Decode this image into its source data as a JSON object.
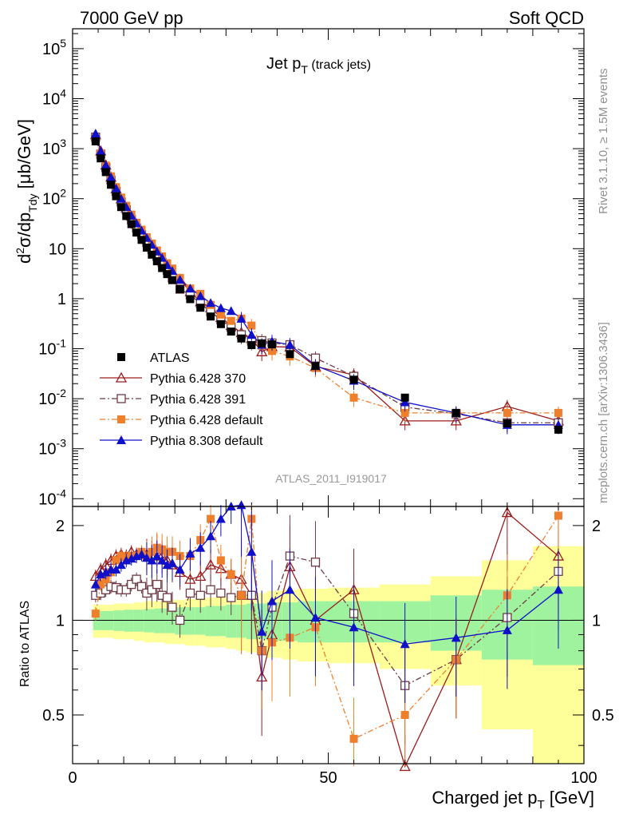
{
  "header": {
    "left": "7000 GeV pp",
    "right": "Soft QCD"
  },
  "side_text": {
    "rivet": "Rivet 3.1.10, ≥ 1.5M events",
    "mcplots": "mcplots.cern.ch [arXiv:1306.3436]"
  },
  "chart_data": {
    "type": "line",
    "title": "Jet p_T (track jets)",
    "analysis_label": "ATLAS_2011_I919017",
    "xlabel": "Charged jet p_T [GeV]",
    "ylabel_main": "d²σ/dp_Tdy [μb/GeV]",
    "ylabel_ratio": "Ratio to ATLAS",
    "xlim": [
      0,
      100
    ],
    "ylim_main": [
      7e-05,
      250000
    ],
    "ylim_ratio": [
      0.35,
      2.3
    ],
    "log_y_main": true,
    "log_y_ratio": true,
    "grid": false,
    "legend_position": "bottom-left",
    "x_ticks": [
      0,
      50,
      100
    ],
    "y_ticks_main": [
      "10^-4",
      "10^-3",
      "10^-2",
      "10^-1",
      "1",
      "10",
      "10^2",
      "10^3",
      "10^4",
      "10^5"
    ],
    "y_ticks_ratio": [
      "0.5",
      "1",
      "2"
    ],
    "x": [
      4.5,
      5.5,
      6.5,
      7.5,
      8.5,
      9.5,
      10.5,
      11.5,
      12.5,
      13.5,
      14.5,
      15.5,
      16.5,
      17.5,
      18.5,
      19.5,
      21,
      23,
      25,
      27,
      29,
      31,
      33,
      35,
      37,
      39,
      42.5,
      47.5,
      55,
      65,
      75,
      85,
      95
    ],
    "series": [
      {
        "name": "ATLAS",
        "color": "#000000",
        "marker": "filled-square",
        "values": [
          1400,
          640,
          340,
          190,
          112,
          68,
          45,
          31,
          21,
          15,
          10.5,
          7.6,
          5.6,
          4.1,
          3.1,
          2.35,
          1.55,
          0.98,
          0.66,
          0.44,
          0.31,
          0.22,
          0.16,
          0.118,
          0.128,
          0.122,
          0.078,
          0.045,
          0.024,
          0.0105,
          0.0052,
          0.0032,
          0.0024
        ],
        "ratio": [
          1,
          1,
          1,
          1,
          1,
          1,
          1,
          1,
          1,
          1,
          1,
          1,
          1,
          1,
          1,
          1,
          1,
          1,
          1,
          1,
          1,
          1,
          1,
          1,
          1,
          1,
          1,
          1,
          1,
          1,
          1,
          1,
          1
        ]
      },
      {
        "name": "Pythia 6.428 370",
        "color": "#9b1c1c",
        "marker": "open-triangle",
        "line": "solid",
        "values": [
          1900,
          900,
          470,
          270,
          158,
          99,
          65,
          45,
          31,
          22,
          15.5,
          11.3,
          8.6,
          6.3,
          4.6,
          3.4,
          2.45,
          1.38,
          0.87,
          0.66,
          0.42,
          0.29,
          0.21,
          0.16,
          0.087,
          0.11,
          0.108,
          0.044,
          0.03,
          0.0036,
          0.0036,
          0.007,
          0.0036
        ],
        "ratio": [
          1.38,
          1.45,
          1.5,
          1.55,
          1.6,
          1.62,
          1.6,
          1.65,
          1.62,
          1.63,
          1.62,
          1.6,
          1.68,
          1.6,
          1.55,
          1.5,
          1.42,
          1.35,
          1.38,
          1.5,
          1.46,
          1.4,
          1.35,
          1.2,
          0.66,
          0.9,
          1.48,
          1,
          1.25,
          0.32,
          0.75,
          2.2,
          1.6
        ]
      },
      {
        "name": "Pythia 6.428 391",
        "color": "#6e3b47",
        "marker": "open-square",
        "line": "dashdot",
        "values": [
          1700,
          780,
          420,
          235,
          140,
          86,
          60,
          38,
          26,
          19,
          13.5,
          9.7,
          7,
          5.3,
          3.7,
          2.6,
          1.55,
          1.2,
          0.8,
          0.55,
          0.38,
          0.27,
          0.19,
          0.142,
          0.145,
          0.13,
          0.12,
          0.065,
          0.028,
          0.0068,
          0.005,
          0.0033,
          0.0033
        ],
        "ratio": [
          1.2,
          1.22,
          1.25,
          1.28,
          1.27,
          1.25,
          1.25,
          1.3,
          1.35,
          1.28,
          1.22,
          1.25,
          1.3,
          1.2,
          1.18,
          1.1,
          1,
          1.22,
          1.2,
          1.25,
          1.22,
          1.18,
          1.2,
          1.2,
          0.8,
          1.1,
          1.6,
          1.53,
          1.05,
          0.62,
          0.75,
          1.02,
          1.43
        ]
      },
      {
        "name": "Pythia 6.428 default",
        "color": "#f07f2c",
        "marker": "filled-square",
        "line": "dashdot",
        "values": [
          1500,
          800,
          460,
          280,
          170,
          105,
          72,
          48,
          33,
          24,
          17,
          12.7,
          9.2,
          7,
          5.1,
          4,
          2.6,
          1.6,
          1.25,
          0.75,
          0.48,
          0.36,
          0.4,
          0.29,
          0.115,
          0.09,
          0.07,
          0.041,
          0.0105,
          0.0052,
          0.0052,
          0.0052,
          0.0052
        ],
        "ratio": [
          1.05,
          1.3,
          1.35,
          1.42,
          1.55,
          1.6,
          1.58,
          1.6,
          1.6,
          1.65,
          1.6,
          1.65,
          1.7,
          1.68,
          1.65,
          1.65,
          1.6,
          1.6,
          1.8,
          2.1,
          1.55,
          1.4,
          1.2,
          2.1,
          0.8,
          0.85,
          0.88,
          0.95,
          0.42,
          0.5,
          0.75,
          1.2,
          2.15
        ]
      },
      {
        "name": "Pythia 8.308 default",
        "color": "#1010c8",
        "marker": "filled-triangle",
        "line": "solid",
        "values": [
          2000,
          900,
          470,
          270,
          160,
          100,
          68,
          46,
          32,
          23,
          16.5,
          12,
          8.8,
          6.6,
          4.7,
          3.6,
          2.4,
          1.6,
          1.13,
          0.82,
          0.65,
          0.57,
          0.4,
          0.19,
          0.12,
          0.14,
          0.12,
          0.046,
          0.023,
          0.0085,
          0.0052,
          0.003,
          0.003
        ],
        "ratio": [
          1.3,
          1.4,
          1.42,
          1.45,
          1.45,
          1.5,
          1.55,
          1.57,
          1.6,
          1.62,
          1.58,
          1.55,
          1.6,
          1.55,
          1.5,
          1.52,
          1.45,
          1.63,
          1.7,
          1.85,
          2.1,
          2.3,
          2.45,
          1.65,
          0.92,
          1.15,
          1.25,
          1.02,
          0.95,
          0.84,
          0.88,
          0.93,
          1.25
        ]
      }
    ],
    "uncertainty_band": {
      "x_edges": [
        4,
        6,
        8,
        10,
        12,
        14,
        16,
        18,
        20,
        22,
        24,
        26,
        28,
        30,
        32,
        34,
        36,
        38,
        41,
        44,
        50,
        60,
        70,
        80,
        90,
        100
      ],
      "inner_frac": [
        0.07,
        0.07,
        0.075,
        0.08,
        0.08,
        0.085,
        0.09,
        0.09,
        0.1,
        0.1,
        0.1,
        0.11,
        0.11,
        0.12,
        0.12,
        0.13,
        0.13,
        0.14,
        0.14,
        0.15,
        0.15,
        0.15,
        0.2,
        0.25,
        0.28,
        0.3
      ],
      "outer_frac": [
        0.12,
        0.12,
        0.13,
        0.13,
        0.14,
        0.15,
        0.15,
        0.16,
        0.16,
        0.17,
        0.17,
        0.18,
        0.18,
        0.19,
        0.2,
        0.21,
        0.22,
        0.24,
        0.25,
        0.26,
        0.27,
        0.3,
        0.38,
        0.55,
        0.72,
        0.9
      ],
      "inner_color": "#9ff39f",
      "outer_color": "#ffff99"
    }
  }
}
